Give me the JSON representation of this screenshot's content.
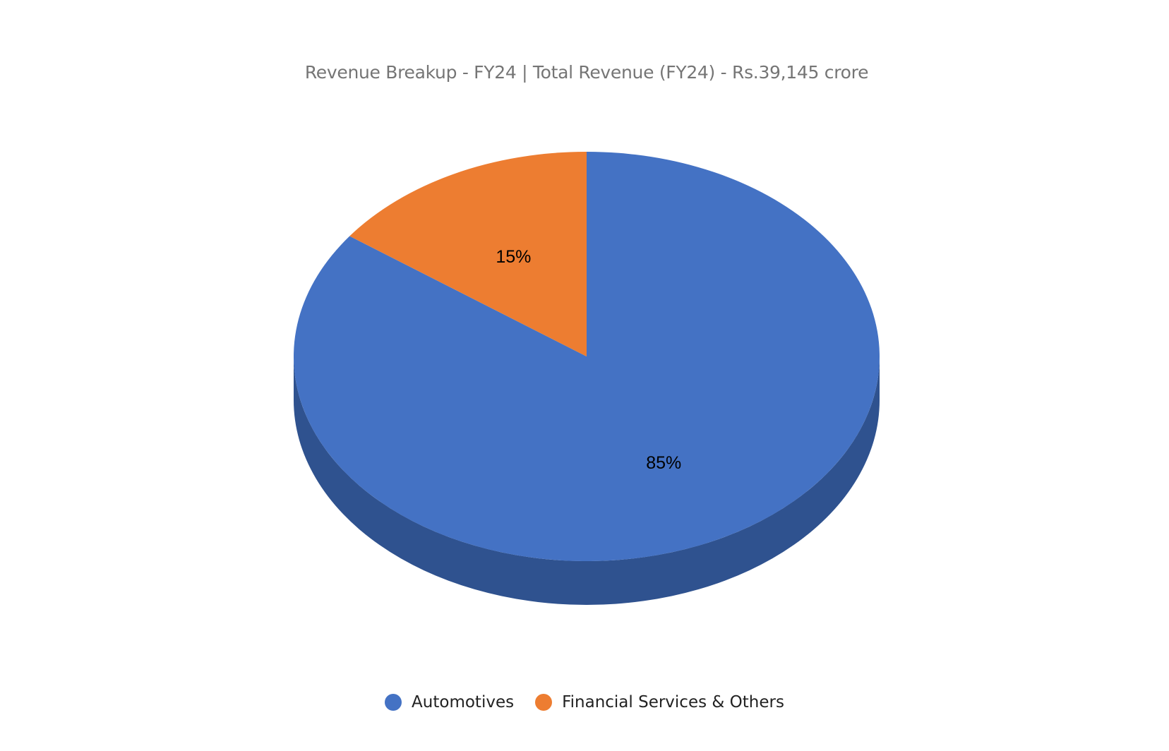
{
  "chart_data": {
    "type": "pie",
    "title": "Revenue Breakup - FY24 | Total Revenue (FY24) - Rs.39,145 crore",
    "categories": [
      "Automotives",
      "Financial Services & Others"
    ],
    "values": [
      85,
      15
    ],
    "labels": [
      "85%",
      "15%"
    ],
    "colors": [
      "#4472C4",
      "#ED7D31"
    ],
    "side_color": "#2F528F",
    "legend_position": "bottom",
    "style": "3d"
  }
}
